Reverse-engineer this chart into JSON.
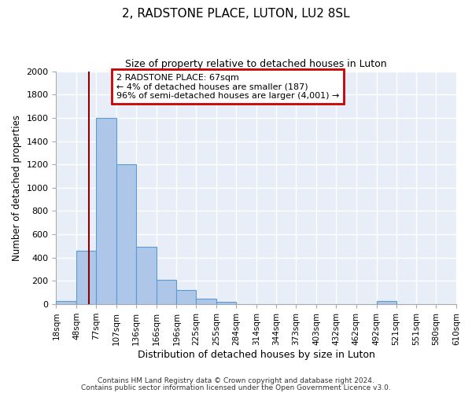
{
  "title": "2, RADSTONE PLACE, LUTON, LU2 8SL",
  "subtitle": "Size of property relative to detached houses in Luton",
  "xlabel": "Distribution of detached houses by size in Luton",
  "ylabel": "Number of detached properties",
  "bar_values": [
    30,
    460,
    1600,
    1200,
    490,
    210,
    120,
    45,
    20,
    0,
    0,
    0,
    0,
    0,
    0,
    0,
    30,
    0,
    0,
    0
  ],
  "bin_edges": [
    18,
    48,
    77,
    107,
    136,
    166,
    196,
    225,
    255,
    284,
    314,
    344,
    373,
    403,
    432,
    462,
    492,
    521,
    551,
    580,
    610
  ],
  "tick_labels": [
    "18sqm",
    "48sqm",
    "77sqm",
    "107sqm",
    "136sqm",
    "166sqm",
    "196sqm",
    "225sqm",
    "255sqm",
    "284sqm",
    "314sqm",
    "344sqm",
    "373sqm",
    "403sqm",
    "432sqm",
    "462sqm",
    "492sqm",
    "521sqm",
    "551sqm",
    "580sqm",
    "610sqm"
  ],
  "bar_color": "#aec6e8",
  "bar_edge_color": "#5b9bd5",
  "vline_x": 67,
  "vline_color": "#8b0000",
  "ylim": [
    0,
    2000
  ],
  "yticks": [
    0,
    200,
    400,
    600,
    800,
    1000,
    1200,
    1400,
    1600,
    1800,
    2000
  ],
  "annotation_title": "2 RADSTONE PLACE: 67sqm",
  "annotation_line1": "← 4% of detached houses are smaller (187)",
  "annotation_line2": "96% of semi-detached houses are larger (4,001) →",
  "annotation_box_color": "#ffffff",
  "annotation_box_edge": "#cc0000",
  "footer1": "Contains HM Land Registry data © Crown copyright and database right 2024.",
  "footer2": "Contains public sector information licensed under the Open Government Licence v3.0.",
  "background_color": "#ffffff",
  "plot_bg_color": "#e8eef7",
  "grid_color": "#ffffff",
  "fig_width": 6.0,
  "fig_height": 5.0
}
